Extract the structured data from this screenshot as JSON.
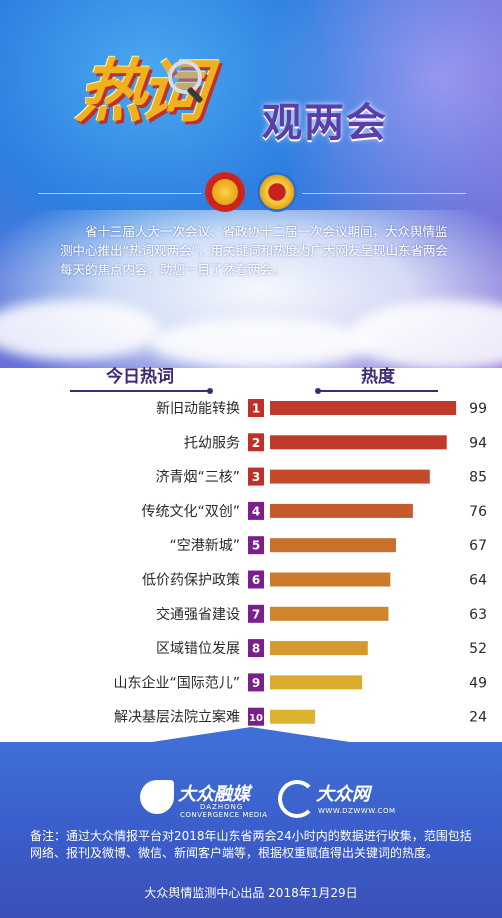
{
  "header": {
    "title_hot": "热词",
    "title_sub": "观两会",
    "intro": "省十三届人大一次会议、省政协十二届一次会议期间，大众舆情监测中心推出“热词观两会”，用关键词和热度为广大网友呈现山东省两会每天的焦点内容，助您一目了然看两会。"
  },
  "chart_data": {
    "type": "bar",
    "orientation": "horizontal",
    "category_header": "今日热词",
    "value_header": "热度",
    "categories": [
      "新旧动能转换",
      "托幼服务",
      "济青烟“三核”",
      "传统文化“双创”",
      "“空港新城”",
      "低价药保护政策",
      "交通强省建设",
      "区域错位发展",
      "山东企业“国际范儿”",
      "解决基层法院立案难"
    ],
    "ranks": [
      "1",
      "2",
      "3",
      "4",
      "5",
      "6",
      "7",
      "8",
      "9",
      "10"
    ],
    "values": [
      99,
      94,
      85,
      76,
      67,
      64,
      63,
      52,
      49,
      24
    ],
    "rank_colors": [
      "#c0302a",
      "#c0302a",
      "#c0302a",
      "#7a1f8c",
      "#7a1f8c",
      "#7a1f8c",
      "#7a1f8c",
      "#7a1f8c",
      "#7a1f8c",
      "#7a1f8c"
    ],
    "bar_colors": [
      "#c0392b",
      "#c0392b",
      "#c54a2b",
      "#c55a2b",
      "#c9702c",
      "#cc7a2c",
      "#cf842d",
      "#d39a2e",
      "#d9ac2f",
      "#dcb22f"
    ]
  },
  "footer": {
    "logo1_name": "大众融媒",
    "logo1_en1": "DAZHONG",
    "logo1_en2": "CONVERGENCE MEDIA",
    "logo2_name": "大众网",
    "logo2_url": "WWW.DZWWW.COM",
    "note": "备注：通过大众情报平台对2018年山东省两会24小时内的数据进行收集，范围包括网络、报刊及微博、微信、新闻客户端等，根据权重赋值得出关键词的热度。",
    "credit": "大众舆情监测中心出品 2018年1月29日"
  },
  "colors": {
    "header_blue": "#2e7fe0",
    "header_purple": "#8f6fd9",
    "title_gold": "#f0b020",
    "title_purple": "#5b3fa8",
    "footer_blue": "#3a5ecb"
  }
}
